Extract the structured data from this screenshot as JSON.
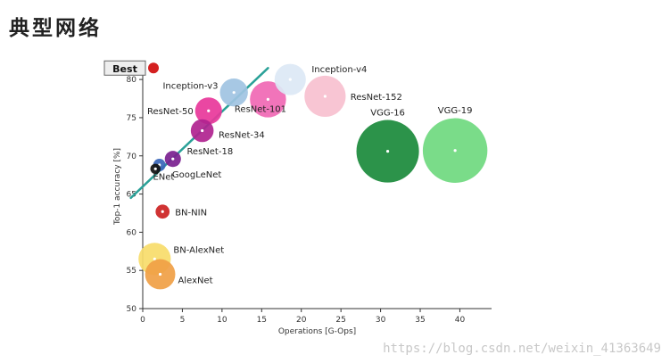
{
  "page": {
    "heading": "典型网络",
    "watermark": "https://blog.csdn.net/weixin_41363649"
  },
  "chart_data": {
    "type": "scatter",
    "title": "",
    "xlabel": "Operations [G-Ops]",
    "ylabel": "Top-1 accuracy [%]",
    "xlim": [
      0,
      44
    ],
    "ylim": [
      50,
      82
    ],
    "x_ticks": [
      0,
      5,
      10,
      15,
      20,
      25,
      30,
      35,
      40
    ],
    "y_ticks": [
      50,
      55,
      60,
      65,
      70,
      75,
      80
    ],
    "grid": false,
    "best_marker": {
      "label": "Best",
      "y": 81.5,
      "color": "#d42020"
    },
    "trend_line": {
      "x": [
        -1.5,
        15.8
      ],
      "y": [
        64.5,
        81.5
      ],
      "color": "#2aa198"
    },
    "points": [
      {
        "name": "AlexNet",
        "x": 2.2,
        "y": 54.5,
        "size": 7.0,
        "color": "#f0a045"
      },
      {
        "name": "BN-AlexNet",
        "x": 1.5,
        "y": 56.5,
        "size": 8.0,
        "color": "#f7dc6a"
      },
      {
        "name": "BN-NIN",
        "x": 2.5,
        "y": 62.7,
        "size": 1.5,
        "color": "#cc2222"
      },
      {
        "name": "ENet",
        "x": 1.6,
        "y": 68.3,
        "size": 0.8,
        "color": "#111111"
      },
      {
        "name": "GoogLeNet",
        "x": 2.1,
        "y": 68.8,
        "size": 1.2,
        "color": "#3a66b8"
      },
      {
        "name": "ResNet-18",
        "x": 3.8,
        "y": 69.6,
        "size": 2.0,
        "color": "#7a1f8f"
      },
      {
        "name": "ResNet-34",
        "x": 7.5,
        "y": 73.3,
        "size": 4.0,
        "color": "#b0238f"
      },
      {
        "name": "ResNet-50",
        "x": 8.3,
        "y": 75.9,
        "size": 5.5,
        "color": "#e8379a"
      },
      {
        "name": "ResNet-101",
        "x": 15.8,
        "y": 77.4,
        "size": 10.0,
        "color": "#f068b4"
      },
      {
        "name": "ResNet-152",
        "x": 23.0,
        "y": 77.8,
        "size": 13.0,
        "color": "#f7c0cf"
      },
      {
        "name": "Inception-v3",
        "x": 11.5,
        "y": 78.3,
        "size": 6.0,
        "color": "#9fc3e2"
      },
      {
        "name": "Inception-v4",
        "x": 18.6,
        "y": 80.0,
        "size": 7.5,
        "color": "#dce8f5"
      },
      {
        "name": "VGG-16",
        "x": 30.9,
        "y": 70.6,
        "size": 30.0,
        "color": "#1a8a3b"
      },
      {
        "name": "VGG-19",
        "x": 39.4,
        "y": 70.7,
        "size": 32.0,
        "color": "#6fd97f"
      }
    ]
  }
}
